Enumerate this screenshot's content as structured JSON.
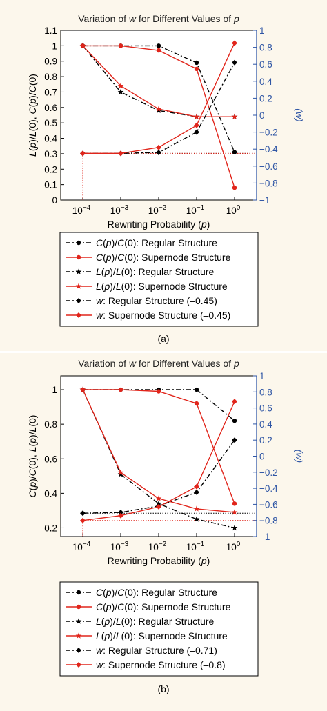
{
  "colors": {
    "background": "#fcf7ec",
    "black_series": "#000000",
    "red_series": "#e1251b",
    "right_axis": "#2f56a5"
  },
  "chart_data": [
    {
      "type": "line",
      "panel_label": "(a)",
      "title_parts": [
        "Variation of ",
        "w",
        " for Different Values of ",
        "p"
      ],
      "xlabel_parts": [
        "Rewriting Probability (",
        "p",
        ")"
      ],
      "ylabel_parts": [
        "L",
        "(",
        "p",
        ")/",
        "L",
        "(0), ",
        "C",
        "(",
        "p",
        ")/",
        "C",
        "(0)"
      ],
      "y2label": "(w)",
      "x_scale": "log",
      "x": [
        0.0001,
        0.001,
        0.01,
        0.1,
        1
      ],
      "x_ticks": [
        {
          "value": 0.0001,
          "base": "10",
          "exp": "−4"
        },
        {
          "value": 0.001,
          "base": "10",
          "exp": "−3"
        },
        {
          "value": 0.01,
          "base": "10",
          "exp": "−2"
        },
        {
          "value": 0.1,
          "base": "10",
          "exp": "−1"
        },
        {
          "value": 1,
          "base": "10",
          "exp": "0"
        }
      ],
      "ylim": [
        0,
        1.1
      ],
      "y_ticks": [
        "0",
        "0.1",
        "0.2",
        "0.3",
        "0.4",
        "0.5",
        "0.6",
        "0.7",
        "0.8",
        "0.9",
        "1",
        "1.1"
      ],
      "y2lim": [
        -1,
        1
      ],
      "y2_ticks": [
        "−1",
        "−0.8",
        "−0.6",
        "−0.4",
        "−0.2",
        "0",
        "0.2",
        "0.4",
        "0.6",
        "0.8",
        "1"
      ],
      "series": [
        {
          "name_parts": [
            "C",
            "(",
            "p",
            ")/",
            "C",
            "(0)",
            ": Regular Structure"
          ],
          "axis": "left",
          "color": "#000000",
          "marker": "dot",
          "dash": "dashdot",
          "values": [
            1.0,
            1.0,
            1.0,
            0.89,
            0.31
          ]
        },
        {
          "name_parts": [
            "C",
            "(",
            "p",
            ")/",
            "C",
            "(0)",
            ": Supernode Structure"
          ],
          "axis": "left",
          "color": "#e1251b",
          "marker": "dot",
          "dash": "solid",
          "values": [
            1.0,
            1.0,
            0.97,
            0.85,
            0.08
          ]
        },
        {
          "name_parts": [
            "L",
            "(",
            "p",
            ")/",
            "L",
            "(0)",
            ": Regular Structure"
          ],
          "axis": "left",
          "color": "#000000",
          "marker": "star",
          "dash": "dashdot",
          "values": [
            1.0,
            0.7,
            0.58,
            0.54,
            0.54
          ]
        },
        {
          "name_parts": [
            "L",
            "(",
            "p",
            ")/",
            "L",
            "(0)",
            ": Supernode Structure"
          ],
          "axis": "left",
          "color": "#e1251b",
          "marker": "star",
          "dash": "solid",
          "values": [
            1.0,
            0.74,
            0.59,
            0.54,
            0.54
          ]
        },
        {
          "name_parts": [
            "w",
            ": Regular Structure (–0.45)"
          ],
          "axis": "right",
          "color": "#000000",
          "marker": "diamond",
          "dash": "dashdot",
          "values": [
            -0.45,
            -0.45,
            -0.44,
            -0.2,
            0.62
          ]
        },
        {
          "name_parts": [
            "w",
            ": Supernode Structure (–0.45)"
          ],
          "axis": "right",
          "color": "#e1251b",
          "marker": "diamond",
          "dash": "solid",
          "values": [
            -0.45,
            -0.45,
            -0.38,
            -0.12,
            0.85
          ]
        }
      ],
      "reference_lines": [
        {
          "kind": "horizontal",
          "axis": "right",
          "value": -0.45,
          "color": "#000000"
        },
        {
          "kind": "horizontal",
          "axis": "right",
          "value": -0.45,
          "color": "#e1251b"
        },
        {
          "kind": "vertical",
          "x": 0.0001,
          "color": "#e1251b"
        }
      ]
    },
    {
      "type": "line",
      "panel_label": "(b)",
      "title_parts": [
        "Variation of ",
        "w",
        " for Different Values of ",
        "p"
      ],
      "xlabel_parts": [
        "Rewriting Probability (",
        "p",
        ")"
      ],
      "ylabel_parts": [
        "C",
        "(",
        "p",
        ")/",
        "C",
        "(0), ",
        "L",
        "(",
        "p",
        ")/",
        "L",
        "(0)"
      ],
      "y2label": "(w)",
      "x_scale": "log",
      "x": [
        0.0001,
        0.001,
        0.01,
        0.1,
        1
      ],
      "x_ticks": [
        {
          "value": 0.0001,
          "base": "10",
          "exp": "−4"
        },
        {
          "value": 0.001,
          "base": "10",
          "exp": "−3"
        },
        {
          "value": 0.01,
          "base": "10",
          "exp": "−2"
        },
        {
          "value": 0.1,
          "base": "10",
          "exp": "−1"
        },
        {
          "value": 1,
          "base": "10",
          "exp": "0"
        }
      ],
      "ylim": [
        0.15,
        1.08
      ],
      "y_ticks": [
        "0.2",
        "0.4",
        "0.6",
        "0.8",
        "1"
      ],
      "y_tick_values": [
        0.2,
        0.4,
        0.6,
        0.8,
        1.0
      ],
      "y2lim": [
        -1,
        1
      ],
      "y2_ticks": [
        "−1",
        "−0.8",
        "−0.6",
        "−0.4",
        "−0.2",
        "0",
        "0.2",
        "0.4",
        "0.6",
        "0.8",
        "1"
      ],
      "series": [
        {
          "name_parts": [
            "C",
            "(",
            "p",
            ")/",
            "C",
            "(0)",
            ": Regular Structure"
          ],
          "axis": "left",
          "color": "#000000",
          "marker": "dot",
          "dash": "dashdot",
          "values": [
            1.0,
            1.0,
            1.0,
            1.0,
            0.82
          ]
        },
        {
          "name_parts": [
            "C",
            "(",
            "p",
            ")/",
            "C",
            "(0)",
            ": Supernode Structure"
          ],
          "axis": "left",
          "color": "#e1251b",
          "marker": "dot",
          "dash": "solid",
          "values": [
            1.0,
            1.0,
            0.99,
            0.92,
            0.34
          ]
        },
        {
          "name_parts": [
            "L",
            "(",
            "p",
            ")/",
            "L",
            "(0)",
            ": Regular Structure"
          ],
          "axis": "left",
          "color": "#000000",
          "marker": "star",
          "dash": "dashdot",
          "values": [
            1.0,
            0.51,
            0.34,
            0.25,
            0.2
          ]
        },
        {
          "name_parts": [
            "L",
            "(",
            "p",
            ")/",
            "L",
            "(0)",
            ": Supernode Structure"
          ],
          "axis": "left",
          "color": "#e1251b",
          "marker": "star",
          "dash": "solid",
          "values": [
            1.0,
            0.52,
            0.37,
            0.31,
            0.29
          ]
        },
        {
          "name_parts": [
            "w",
            ": Regular Structure (–0.71)"
          ],
          "axis": "right",
          "color": "#000000",
          "marker": "diamond",
          "dash": "dashdot",
          "values": [
            -0.71,
            -0.7,
            -0.62,
            -0.45,
            0.2
          ]
        },
        {
          "name_parts": [
            "w",
            ": Supernode Structure (–0.8)"
          ],
          "axis": "right",
          "color": "#e1251b",
          "marker": "diamond",
          "dash": "solid",
          "values": [
            -0.8,
            -0.74,
            -0.63,
            -0.38,
            0.68
          ]
        }
      ],
      "reference_lines": [
        {
          "kind": "horizontal",
          "axis": "right",
          "value": -0.71,
          "color": "#000000"
        },
        {
          "kind": "horizontal",
          "axis": "right",
          "value": -0.8,
          "color": "#e1251b"
        },
        {
          "kind": "vertical",
          "x": 0.0001,
          "color": "#e1251b"
        }
      ]
    }
  ]
}
